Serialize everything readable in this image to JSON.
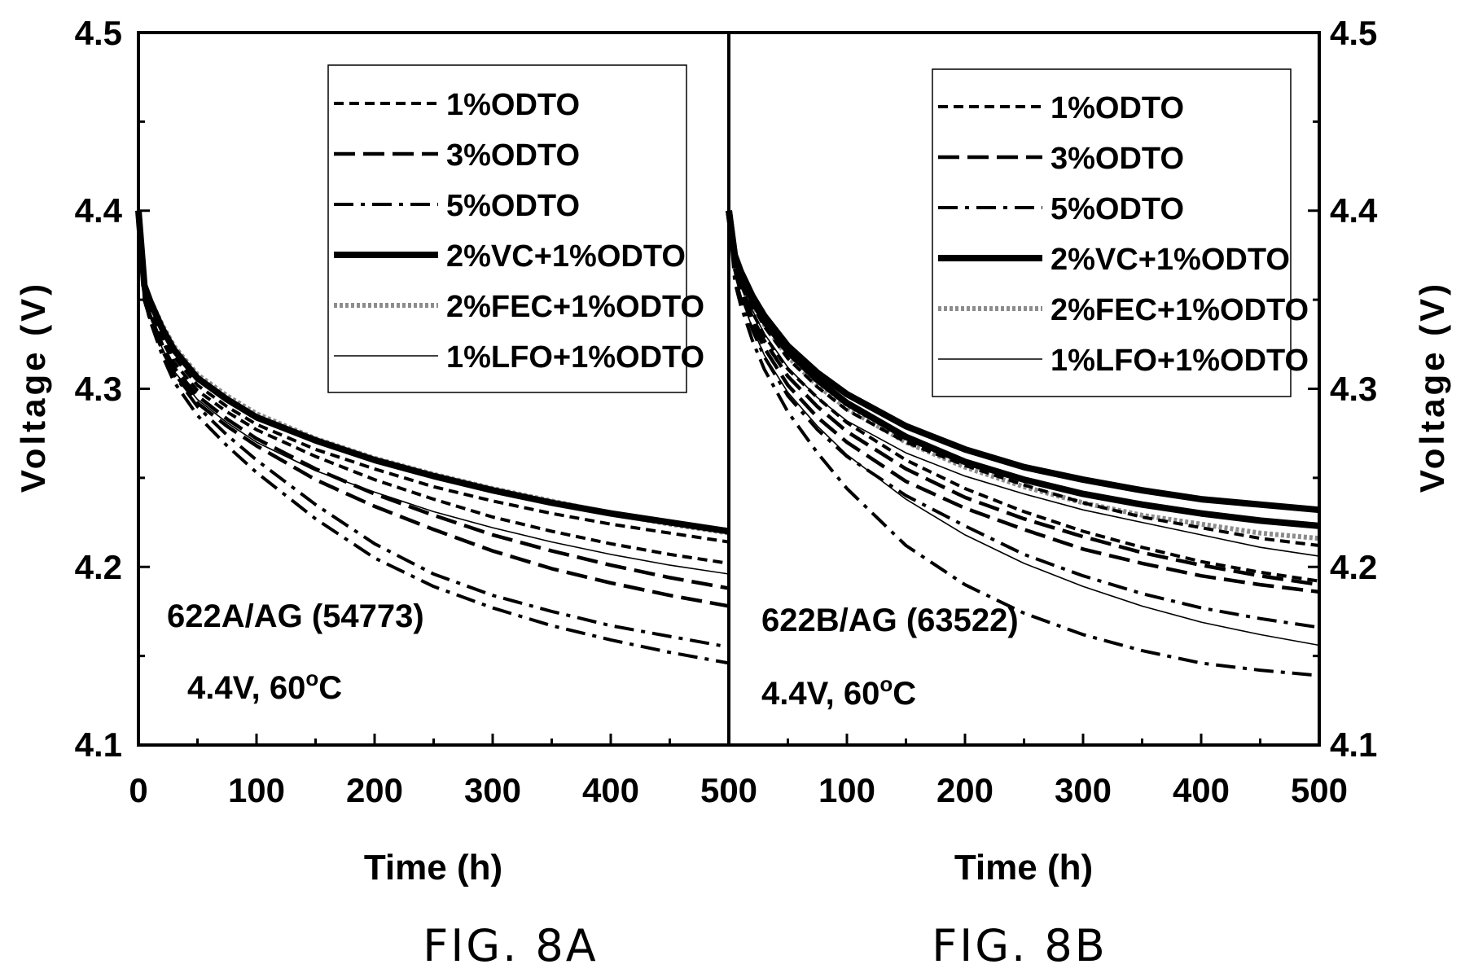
{
  "chart_data": [
    {
      "type": "line",
      "caption": "FIG. 8A",
      "xlabel": "Time (h)",
      "ylabel": "Voltage (V)",
      "xlim": [
        0,
        500
      ],
      "ylim": [
        4.1,
        4.5
      ],
      "xticks": [
        "0",
        "100",
        "200",
        "300",
        "400",
        "500"
      ],
      "yticks": [
        "4.1",
        "4.2",
        "4.3",
        "4.4",
        "4.5"
      ],
      "annotations": [
        "622A/AG (54773)",
        "4.4V, 60",
        "o",
        "C"
      ],
      "legend_position": "top-right",
      "x": [
        0,
        5,
        10,
        20,
        30,
        50,
        75,
        100,
        150,
        200,
        250,
        300,
        350,
        400,
        450,
        500
      ],
      "series": [
        {
          "name": "1%ODTO",
          "style": "short-dash",
          "runs": [
            [
              4.4,
              4.355,
              4.345,
              4.33,
              4.318,
              4.302,
              4.29,
              4.28,
              4.266,
              4.255,
              4.245,
              4.237,
              4.23,
              4.224,
              4.219,
              4.214
            ],
            [
              4.4,
              4.353,
              4.343,
              4.327,
              4.315,
              4.299,
              4.287,
              4.277,
              4.262,
              4.249,
              4.238,
              4.228,
              4.22,
              4.213,
              4.207,
              4.202
            ]
          ]
        },
        {
          "name": "3%ODTO",
          "style": "long-dash",
          "runs": [
            [
              4.4,
              4.352,
              4.341,
              4.325,
              4.312,
              4.296,
              4.283,
              4.272,
              4.255,
              4.241,
              4.229,
              4.218,
              4.209,
              4.201,
              4.194,
              4.188
            ],
            [
              4.4,
              4.35,
              4.339,
              4.322,
              4.309,
              4.292,
              4.279,
              4.268,
              4.249,
              4.234,
              4.221,
              4.209,
              4.199,
              4.191,
              4.184,
              4.178
            ]
          ]
        },
        {
          "name": "5%ODTO",
          "style": "dash-dot",
          "runs": [
            [
              4.4,
              4.352,
              4.34,
              4.322,
              4.308,
              4.29,
              4.274,
              4.26,
              4.235,
              4.213,
              4.196,
              4.184,
              4.175,
              4.167,
              4.161,
              4.155
            ],
            [
              4.4,
              4.35,
              4.338,
              4.319,
              4.304,
              4.285,
              4.268,
              4.253,
              4.227,
              4.205,
              4.189,
              4.177,
              4.167,
              4.159,
              4.152,
              4.146
            ]
          ]
        },
        {
          "name": "2%VC+1%ODTO",
          "style": "thick-solid",
          "runs": [
            [
              4.4,
              4.358,
              4.349,
              4.334,
              4.322,
              4.306,
              4.294,
              4.284,
              4.271,
              4.26,
              4.251,
              4.243,
              4.236,
              4.23,
              4.225,
              4.22
            ]
          ]
        },
        {
          "name": "2%FEC+1%ODTO",
          "style": "gray-dotted",
          "runs": [
            [
              4.4,
              4.359,
              4.35,
              4.336,
              4.324,
              4.308,
              4.296,
              4.286,
              4.272,
              4.261,
              4.252,
              4.244,
              4.237,
              4.23,
              4.224,
              4.219
            ]
          ]
        },
        {
          "name": "1%LFO+1%ODTO",
          "style": "thin-solid",
          "runs": [
            [
              4.4,
              4.351,
              4.34,
              4.323,
              4.31,
              4.294,
              4.281,
              4.27,
              4.254,
              4.242,
              4.231,
              4.222,
              4.214,
              4.207,
              4.201,
              4.196
            ]
          ]
        }
      ]
    },
    {
      "type": "line",
      "caption": "FIG. 8B",
      "xlabel": "Time (h)",
      "ylabel": "Voltage (V)",
      "xlim": [
        0,
        500
      ],
      "ylim": [
        4.1,
        4.5
      ],
      "xticks": [
        "0",
        "100",
        "200",
        "300",
        "400",
        "500"
      ],
      "yticks": [
        "4.1",
        "4.2",
        "4.3",
        "4.4",
        "4.5"
      ],
      "annotations": [
        "622B/AG (63522)",
        "4.4V, 60",
        "o",
        "C"
      ],
      "legend_position": "top-right",
      "x": [
        0,
        5,
        10,
        20,
        30,
        50,
        75,
        100,
        150,
        200,
        250,
        300,
        350,
        400,
        450,
        500
      ],
      "series": [
        {
          "name": "1%ODTO",
          "style": "short-dash",
          "runs": [
            [
              4.4,
              4.372,
              4.362,
              4.347,
              4.335,
              4.317,
              4.301,
              4.288,
              4.27,
              4.257,
              4.246,
              4.236,
              4.228,
              4.222,
              4.216,
              4.212
            ],
            [
              4.4,
              4.37,
              4.359,
              4.343,
              4.33,
              4.311,
              4.295,
              4.281,
              4.26,
              4.244,
              4.231,
              4.22,
              4.211,
              4.203,
              4.197,
              4.192
            ]
          ]
        },
        {
          "name": "3%ODTO",
          "style": "long-dash",
          "runs": [
            [
              4.4,
              4.368,
              4.357,
              4.34,
              4.327,
              4.307,
              4.29,
              4.276,
              4.255,
              4.239,
              4.227,
              4.217,
              4.208,
              4.201,
              4.195,
              4.19
            ],
            [
              4.4,
              4.367,
              4.355,
              4.337,
              4.323,
              4.302,
              4.284,
              4.27,
              4.248,
              4.233,
              4.221,
              4.21,
              4.202,
              4.195,
              4.19,
              4.186
            ]
          ]
        },
        {
          "name": "5%ODTO",
          "style": "dash-dot",
          "runs": [
            [
              4.4,
              4.363,
              4.351,
              4.333,
              4.318,
              4.296,
              4.277,
              4.262,
              4.24,
              4.223,
              4.207,
              4.195,
              4.185,
              4.177,
              4.171,
              4.166
            ],
            [
              4.4,
              4.36,
              4.347,
              4.327,
              4.311,
              4.287,
              4.264,
              4.244,
              4.212,
              4.19,
              4.174,
              4.162,
              4.153,
              4.146,
              4.142,
              4.139
            ]
          ]
        },
        {
          "name": "2%VC+1%ODTO",
          "style": "thick-solid",
          "runs": [
            [
              4.4,
              4.375,
              4.366,
              4.352,
              4.341,
              4.324,
              4.309,
              4.297,
              4.279,
              4.266,
              4.256,
              4.249,
              4.243,
              4.238,
              4.235,
              4.232
            ],
            [
              4.4,
              4.374,
              4.365,
              4.35,
              4.338,
              4.321,
              4.305,
              4.292,
              4.273,
              4.259,
              4.249,
              4.241,
              4.235,
              4.23,
              4.226,
              4.223
            ]
          ]
        },
        {
          "name": "2%FEC+1%ODTO",
          "style": "gray-dotted",
          "runs": [
            [
              4.4,
              4.372,
              4.363,
              4.348,
              4.336,
              4.318,
              4.302,
              4.289,
              4.27,
              4.256,
              4.245,
              4.236,
              4.229,
              4.224,
              4.219,
              4.216
            ]
          ]
        },
        {
          "name": "1%LFO+1%ODTO",
          "style": "thin-solid",
          "runs": [
            [
              4.4,
              4.37,
              4.36,
              4.344,
              4.331,
              4.312,
              4.295,
              4.282,
              4.264,
              4.251,
              4.241,
              4.232,
              4.225,
              4.218,
              4.211,
              4.206
            ],
            [
              4.4,
              4.364,
              4.352,
              4.334,
              4.319,
              4.298,
              4.279,
              4.263,
              4.238,
              4.218,
              4.202,
              4.189,
              4.178,
              4.169,
              4.162,
              4.156
            ]
          ]
        }
      ]
    }
  ]
}
